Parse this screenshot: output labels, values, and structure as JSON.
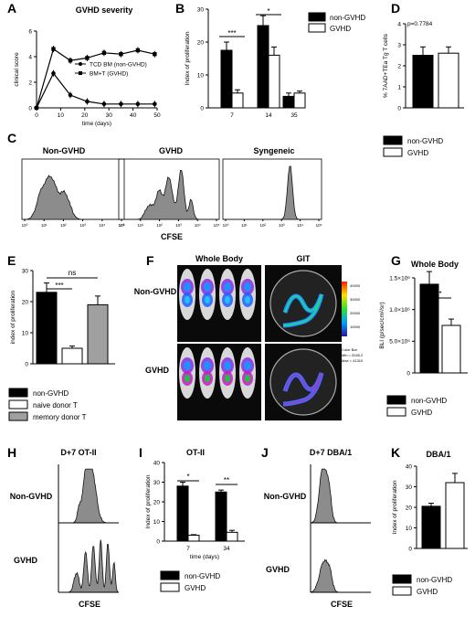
{
  "panels": {
    "A": "A",
    "B": "B",
    "C": "C",
    "D": "D",
    "E": "E",
    "F": "F",
    "G": "G",
    "H": "H",
    "I": "I",
    "J": "J",
    "K": "K"
  },
  "chart_data": [
    {
      "id": "A",
      "type": "line",
      "title": "GVHD severity",
      "xlabel": "time (days)",
      "ylabel": "clinical score",
      "xlim": [
        0,
        50
      ],
      "ylim": [
        0,
        6
      ],
      "xticks": [
        "0",
        "10",
        "20",
        "30",
        "40",
        "50"
      ],
      "yticks": [
        "0",
        "2",
        "4",
        "6"
      ],
      "series": [
        {
          "name": "TCD BM (non-GVHD)",
          "marker": "circle",
          "x": [
            0,
            7,
            14,
            21,
            28,
            35,
            42,
            49
          ],
          "y": [
            0,
            2.7,
            1.0,
            0.5,
            0.3,
            0.3,
            0.3,
            0.3
          ]
        },
        {
          "name": "BM+T (GVHD)",
          "marker": "square",
          "x": [
            0,
            7,
            14,
            21,
            28,
            35,
            42,
            49
          ],
          "y": [
            0,
            4.6,
            3.7,
            3.9,
            4.3,
            4.2,
            4.5,
            4.2
          ]
        }
      ],
      "legend": "center-right"
    },
    {
      "id": "B",
      "type": "bar",
      "ylabel": "Index of proliferation",
      "categories": [
        "7",
        "14",
        "35"
      ],
      "ylim": [
        0,
        30
      ],
      "yticks": [
        "0",
        "10",
        "20",
        "30"
      ],
      "series": [
        {
          "name": "non-GVHD",
          "values": [
            17.5,
            25,
            3.5
          ]
        },
        {
          "name": "GVHD",
          "values": [
            4.5,
            16,
            4.5
          ]
        }
      ],
      "annotations": [
        "***",
        "*"
      ],
      "legend": "top-right"
    },
    {
      "id": "D",
      "type": "bar",
      "ylabel": "% 7AAD+TEa Tg T cells",
      "ylim": [
        0,
        4
      ],
      "yticks": [
        "0",
        "1",
        "2",
        "3",
        "4"
      ],
      "series": [
        {
          "name": "non-GVHD",
          "values": [
            2.5
          ]
        },
        {
          "name": "GVHD",
          "values": [
            2.6
          ]
        }
      ],
      "annotations": [
        "p=0.7784"
      ],
      "legend": "bottom"
    },
    {
      "id": "C",
      "type": "histogram",
      "panels": [
        "Non-GVHD",
        "GVHD",
        "Syngeneic"
      ],
      "xlabel": "CFSE"
    },
    {
      "id": "E",
      "type": "bar",
      "ylabel": "index of proliferation",
      "ylim": [
        0,
        30
      ],
      "yticks": [
        "0",
        "10",
        "20",
        "30"
      ],
      "series": [
        {
          "name": "non-GVHD",
          "values": [
            23
          ]
        },
        {
          "name": "naive donor T",
          "values": [
            5
          ]
        },
        {
          "name": "memory donor T",
          "values": [
            19
          ]
        }
      ],
      "annotations": [
        "***",
        "ns"
      ],
      "legend": "bottom"
    },
    {
      "id": "F",
      "type": "image",
      "columns": [
        "Whole Body",
        "GIT"
      ],
      "rows": [
        "Non-GVHD",
        "GVHD"
      ],
      "colorbar": {
        "ticks": [
          "40000",
          "30000",
          "20000",
          "10000"
        ],
        "caption": [
          "Color Bar",
          "Min = 2045.2",
          "Max = 41310"
        ]
      }
    },
    {
      "id": "G",
      "type": "bar",
      "title": "Whole Body",
      "ylabel": "BLI (p/sec/cm²/sr)",
      "yticks": [
        "0",
        "5.0×10⁵",
        "1.0×10⁶",
        "1.5×10⁶"
      ],
      "ylim": [
        0,
        1500000
      ],
      "series": [
        {
          "name": "non-GVHD",
          "values": [
            1400000
          ]
        },
        {
          "name": "GVHD",
          "values": [
            750000
          ]
        }
      ],
      "annotations": [
        "*"
      ],
      "legend": "bottom"
    },
    {
      "id": "H",
      "type": "histogram",
      "title": "D+7 OT-II",
      "rows": [
        "Non-GVHD",
        "GVHD"
      ],
      "xlabel": "CFSE"
    },
    {
      "id": "I",
      "type": "bar",
      "title": "OT-II",
      "ylabel": "Index of proliferation",
      "xlabel": "time (days)",
      "categories": [
        "7",
        "34"
      ],
      "ylim": [
        0,
        40
      ],
      "yticks": [
        "0",
        "10",
        "20",
        "30",
        "40"
      ],
      "series": [
        {
          "name": "non-GVHD",
          "values": [
            28,
            25
          ]
        },
        {
          "name": "GVHD",
          "values": [
            3,
            4.5
          ]
        }
      ],
      "annotations": [
        "*",
        "**"
      ],
      "legend": "bottom"
    },
    {
      "id": "J",
      "type": "histogram",
      "title": "D+7 DBA/1",
      "rows": [
        "Non-GVHD",
        "GVHD"
      ],
      "xlabel": "CFSE"
    },
    {
      "id": "K",
      "type": "bar",
      "title": "DBA/1",
      "ylabel": "Index of proliferation",
      "ylim": [
        0,
        40
      ],
      "yticks": [
        "0",
        "10",
        "20",
        "30",
        "40"
      ],
      "series": [
        {
          "name": "non-GVHD",
          "values": [
            20.5
          ]
        },
        {
          "name": "GVHD",
          "values": [
            32
          ]
        }
      ],
      "legend": "bottom"
    }
  ]
}
